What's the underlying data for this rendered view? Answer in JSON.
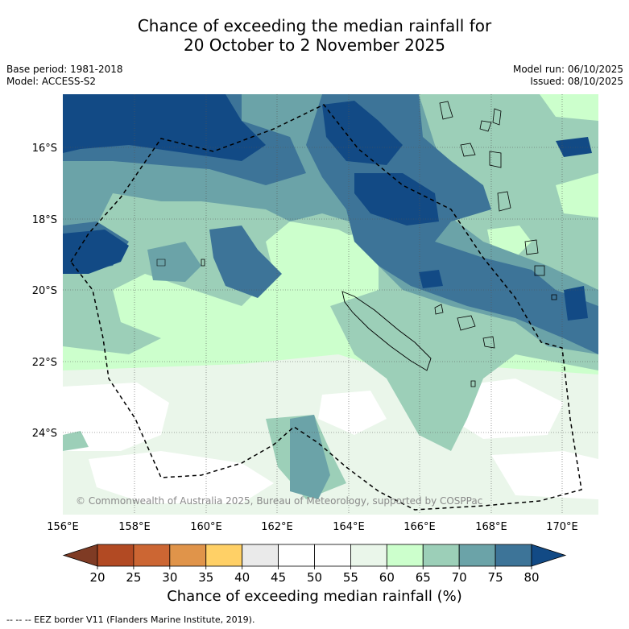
{
  "title_line1": "Chance of exceeding the median rainfall for",
  "title_line2": "20 October to 2 November 2025",
  "meta_left": {
    "base_period": "Base period: 1981-2018",
    "model": "Model: ACCESS-S2"
  },
  "meta_right": {
    "model_run": "Model run: 06/10/2025",
    "issued": "Issued: 08/10/2025"
  },
  "map": {
    "lon_range": [
      156,
      171
    ],
    "lat_range": [
      -14.8,
      -26.6
    ],
    "lon_ticks": [
      "156°E",
      "158°E",
      "160°E",
      "162°E",
      "164°E",
      "166°E",
      "168°E",
      "170°E"
    ],
    "lat_ticks": [
      "16°S",
      "18°S",
      "20°S",
      "22°S",
      "24°S"
    ],
    "copyright": "© Commonwealth of Australia 2025, Bureau of Meteorology, supported by COSPPac"
  },
  "colorbar": {
    "ticks": [
      "20",
      "25",
      "30",
      "35",
      "40",
      "45",
      "50",
      "55",
      "60",
      "65",
      "70",
      "75",
      "80"
    ],
    "colors": [
      "#7f3b24",
      "#b24a23",
      "#cc6633",
      "#e0944a",
      "#ffd066",
      "#eaeaea",
      "#ffffff",
      "#ffffff",
      "#eaf6ea",
      "#ccffcc",
      "#9ccfb8",
      "#6ba3a8",
      "#3d7498",
      "#124a85"
    ],
    "label": "Chance of exceeding median rainfall (%)"
  },
  "footer": "--  --  -- EEZ border V11 (Flanders Marine Institute, 2019)."
}
